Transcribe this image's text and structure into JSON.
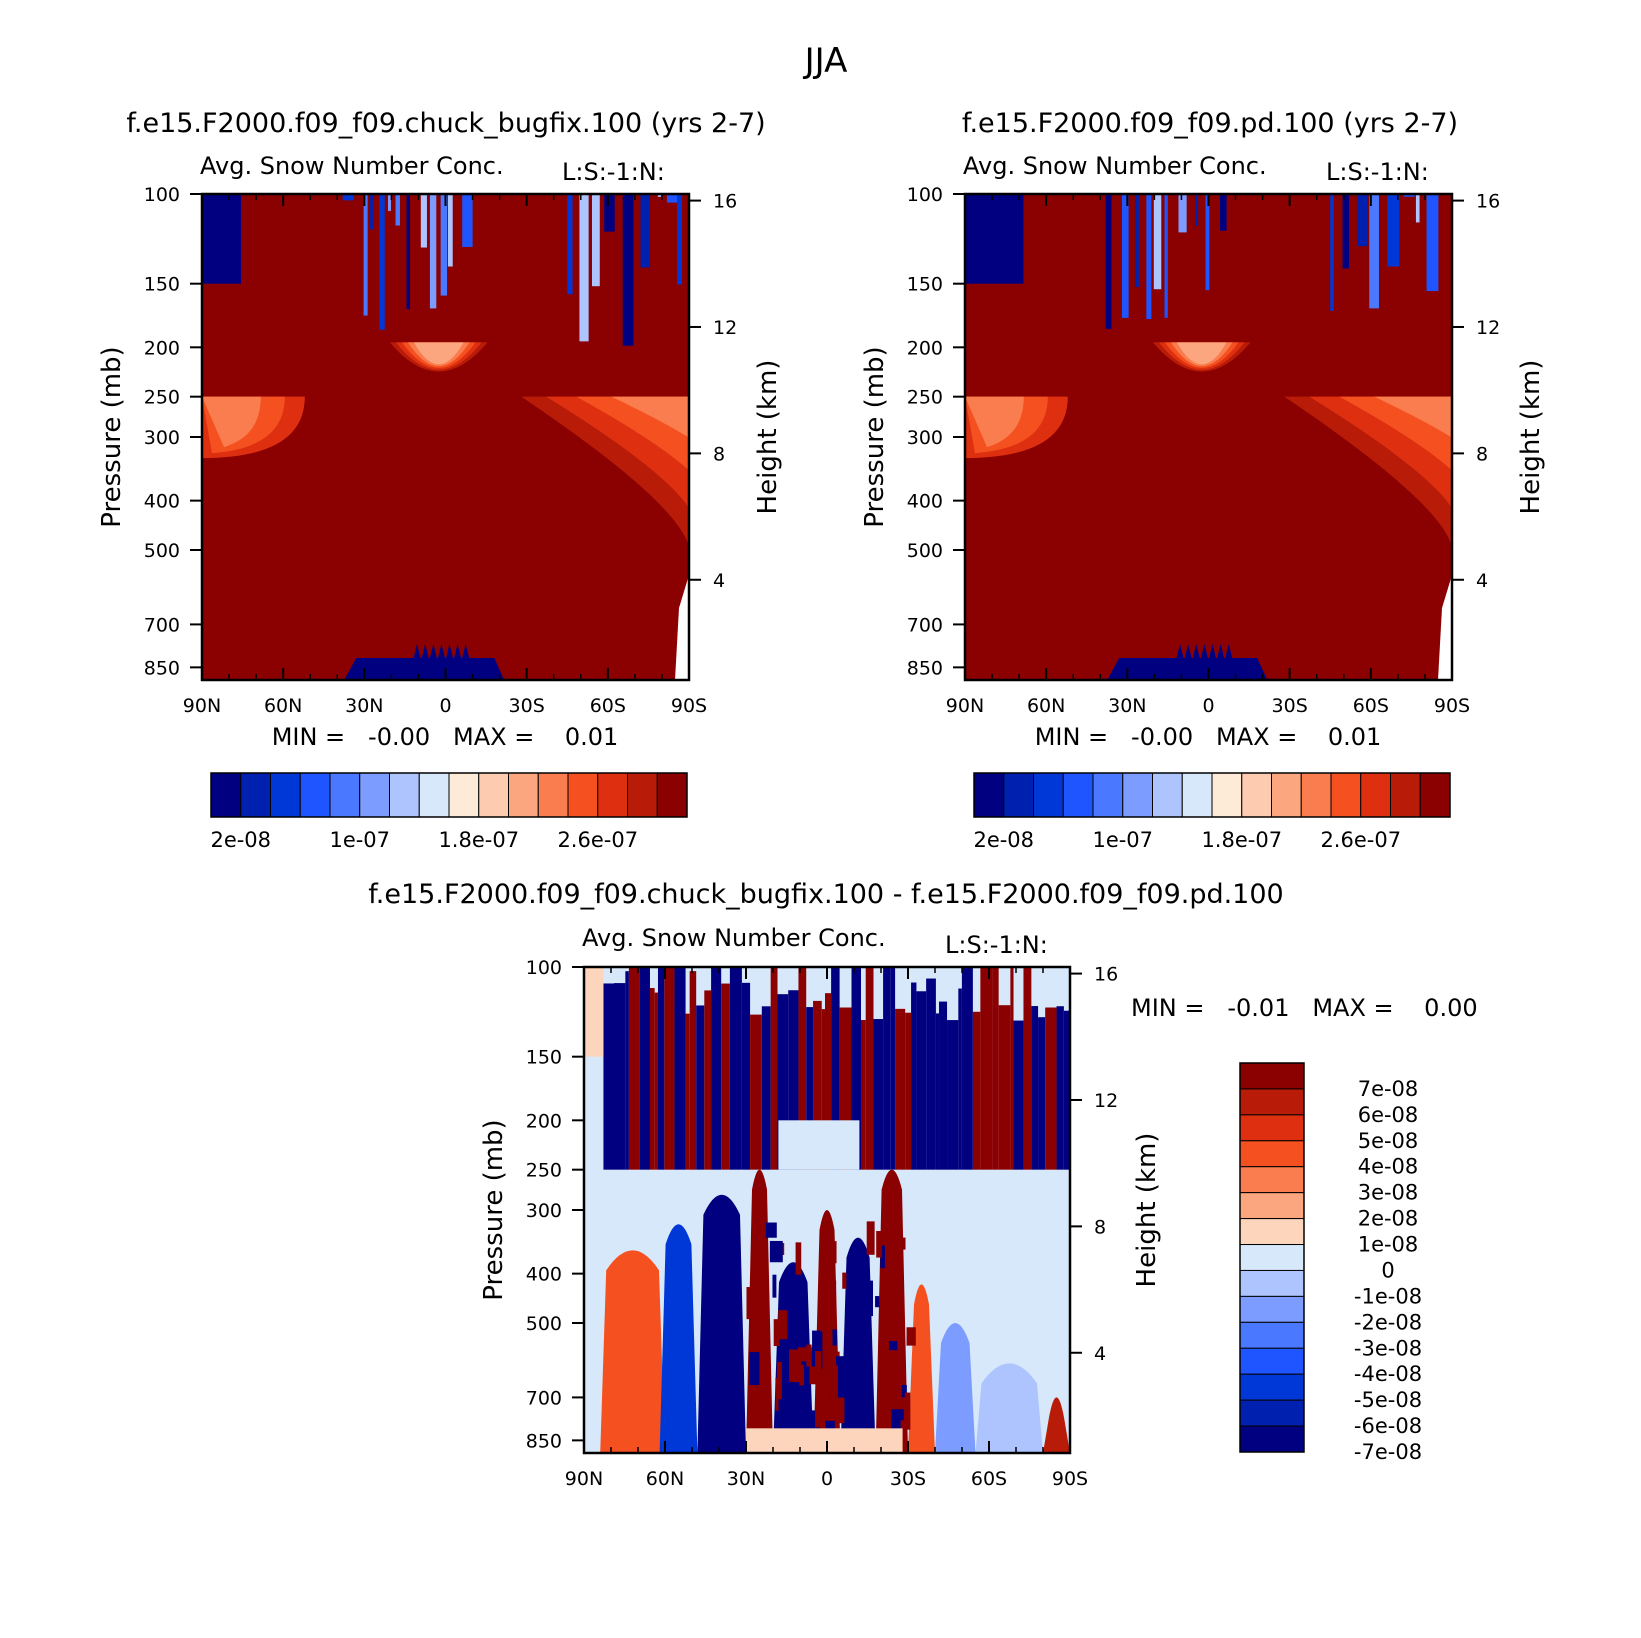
{
  "page_title": "JJA",
  "palettes": {
    "abs": [
      "#000080",
      "#0020b0",
      "#0038d8",
      "#1f55ff",
      "#4a78ff",
      "#7c9cff",
      "#adc4ff",
      "#d7e8fa",
      "#fdebd8",
      "#fdcbb0",
      "#fca680",
      "#fa7d4f",
      "#f5501f",
      "#de3010",
      "#b81c08",
      "#8b0000"
    ],
    "diff": [
      "#000080",
      "#0020b0",
      "#0038d8",
      "#1f55ff",
      "#4a78ff",
      "#7c9cff",
      "#adc4ff",
      "#d7e8fa",
      "#fdd5bc",
      "#fca680",
      "#fa7d4f",
      "#f5501f",
      "#de3010",
      "#b81c08",
      "#8b0000"
    ]
  },
  "chart_data": [
    {
      "type": "heatmap",
      "panel_title": "f.e15.F2000.f09_f09.chuck_bugfix.100 (yrs 2-7)",
      "subtitle": "Avg. Snow Number Conc.",
      "tag": "L:S:-1:N:",
      "ylabel": "Pressure (mb)",
      "y2label": "Height (km)",
      "x_ticks": [
        "90N",
        "60N",
        "30N",
        "0",
        "30S",
        "60S",
        "90S"
      ],
      "y_ticks": [
        "100",
        "150",
        "200",
        "250",
        "300",
        "400",
        "500",
        "700",
        "850"
      ],
      "y2_ticks": [
        "16",
        "12",
        "8",
        "4"
      ],
      "stats": "MIN =   -0.00   MAX =    0.01",
      "colorbar_labels": [
        "2e-08",
        "1e-07",
        "1.8e-07",
        "2.6e-07"
      ],
      "colorbar_orientation": "horizontal",
      "variant": "a"
    },
    {
      "type": "heatmap",
      "panel_title": "f.e15.F2000.f09_f09.pd.100 (yrs 2-7)",
      "subtitle": "Avg. Snow Number Conc.",
      "tag": "L:S:-1:N:",
      "ylabel": "Pressure (mb)",
      "y2label": "Height (km)",
      "x_ticks": [
        "90N",
        "60N",
        "30N",
        "0",
        "30S",
        "60S",
        "90S"
      ],
      "y_ticks": [
        "100",
        "150",
        "200",
        "250",
        "300",
        "400",
        "500",
        "700",
        "850"
      ],
      "y2_ticks": [
        "16",
        "12",
        "8",
        "4"
      ],
      "stats": "MIN =   -0.00   MAX =    0.01",
      "colorbar_labels": [
        "2e-08",
        "1e-07",
        "1.8e-07",
        "2.6e-07"
      ],
      "colorbar_orientation": "horizontal",
      "variant": "b"
    },
    {
      "type": "heatmap",
      "panel_title": "f.e15.F2000.f09_f09.chuck_bugfix.100 - f.e15.F2000.f09_f09.pd.100",
      "subtitle": "Avg. Snow Number Conc.",
      "tag": "L:S:-1:N:",
      "ylabel": "Pressure (mb)",
      "y2label": "Height (km)",
      "x_ticks": [
        "90N",
        "60N",
        "30N",
        "0",
        "30S",
        "60S",
        "90S"
      ],
      "y_ticks": [
        "100",
        "150",
        "200",
        "250",
        "300",
        "400",
        "500",
        "700",
        "850"
      ],
      "y2_ticks": [
        "16",
        "12",
        "8",
        "4"
      ],
      "stats": "MIN =   -0.01   MAX =    0.00",
      "colorbar_labels": [
        "7e-08",
        "6e-08",
        "5e-08",
        "4e-08",
        "3e-08",
        "2e-08",
        "1e-08",
        "0",
        "-1e-08",
        "-2e-08",
        "-3e-08",
        "-4e-08",
        "-5e-08",
        "-6e-08",
        "-7e-08"
      ],
      "colorbar_orientation": "vertical"
    }
  ]
}
